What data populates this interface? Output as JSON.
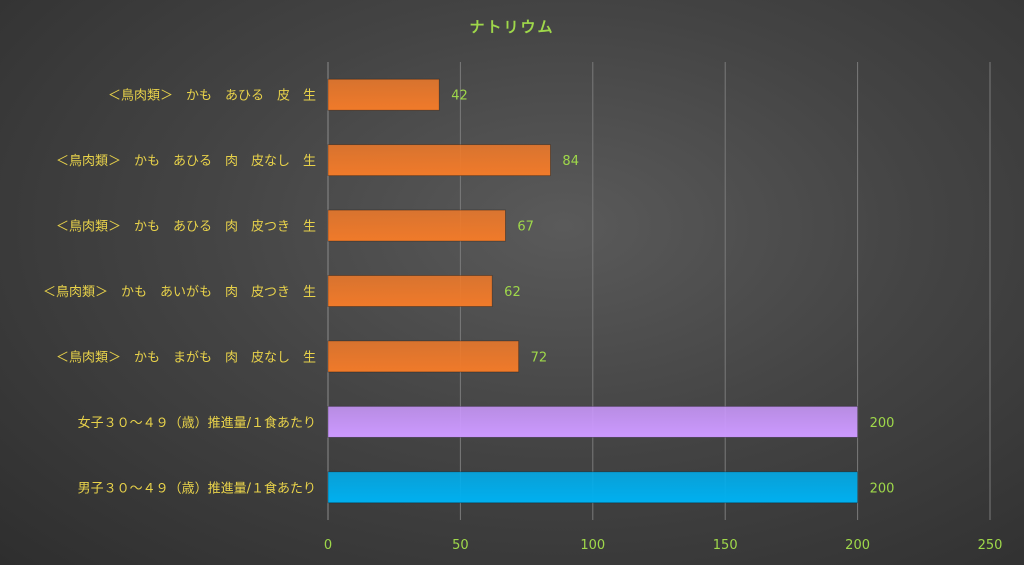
{
  "chart_data": {
    "type": "bar",
    "orientation": "horizontal",
    "title": "ナトリウム",
    "categories": [
      "＜鳥肉類＞　かも　あひる　皮　生",
      "＜鳥肉類＞　かも　あひる　肉　皮なし　生",
      "＜鳥肉類＞　かも　あひる　肉　皮つき　生",
      "＜鳥肉類＞　かも　あいがも　肉　皮つき　生",
      "＜鳥肉類＞　かも　まがも　肉　皮なし　生",
      "女子３０～４９（歳）推進量/１食あたり",
      "男子３０～４９（歳）推進量/１食あたり"
    ],
    "values": [
      42,
      84,
      67,
      62,
      72,
      200,
      200
    ],
    "value_labels": [
      "42",
      "84",
      "67",
      "62",
      "72",
      "200",
      "200"
    ],
    "bar_colors": [
      "#f07a2a",
      "#f07a2a",
      "#f07a2a",
      "#f07a2a",
      "#f07a2a",
      "#cc99ff",
      "#00b0f0"
    ],
    "xlim": [
      0,
      250
    ],
    "xticks": [
      0,
      50,
      100,
      150,
      200,
      250
    ],
    "xtick_labels": [
      "0",
      "50",
      "100",
      "150",
      "200",
      "250"
    ],
    "grid": "vertical",
    "legend": "none",
    "colors": {
      "title": "#9fd84a",
      "category_labels": "#e8d24a",
      "tick_labels": "#9fd84a",
      "value_labels": "#9fd84a",
      "background": "#444444"
    }
  }
}
